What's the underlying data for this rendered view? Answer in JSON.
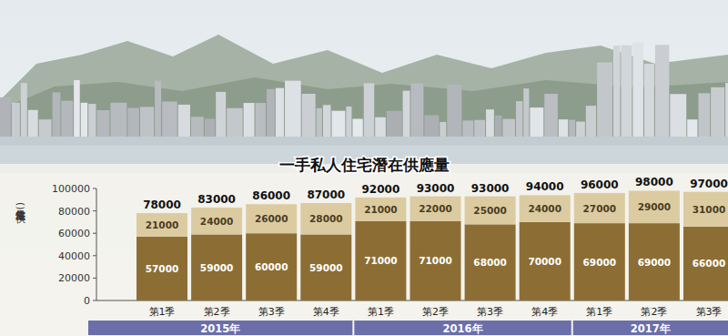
{
  "chart_data": {
    "type": "bar",
    "title": "一手私人住宅潛在供應量",
    "y_label": "住宅供應量(伙)",
    "categories": [
      "第1季",
      "第2季",
      "第3季",
      "第4季",
      "第1季",
      "第2季",
      "第3季",
      "第4季",
      "第1季",
      "第2季",
      "第3季"
    ],
    "groups": [
      {
        "label": "2015年",
        "count": 4
      },
      {
        "label": "2016年",
        "count": 4
      },
      {
        "label": "2017年",
        "count": 3
      }
    ],
    "series": [
      {
        "color": "#8c6e34",
        "values": [
          57000,
          59000,
          60000,
          59000,
          71000,
          71000,
          68000,
          70000,
          69000,
          69000,
          66000
        ]
      },
      {
        "color": "#dccba1",
        "values": [
          21000,
          24000,
          26000,
          28000,
          21000,
          22000,
          25000,
          24000,
          27000,
          29000,
          31000
        ]
      }
    ],
    "totals": [
      78000,
      83000,
      86000,
      87000,
      92000,
      93000,
      93000,
      94000,
      96000,
      98000,
      97000
    ],
    "ylim": [
      0,
      100000
    ],
    "yticks": [
      0,
      20000,
      40000,
      60000,
      80000,
      100000
    ],
    "stacked": true,
    "data_labels": true,
    "grid": false
  }
}
